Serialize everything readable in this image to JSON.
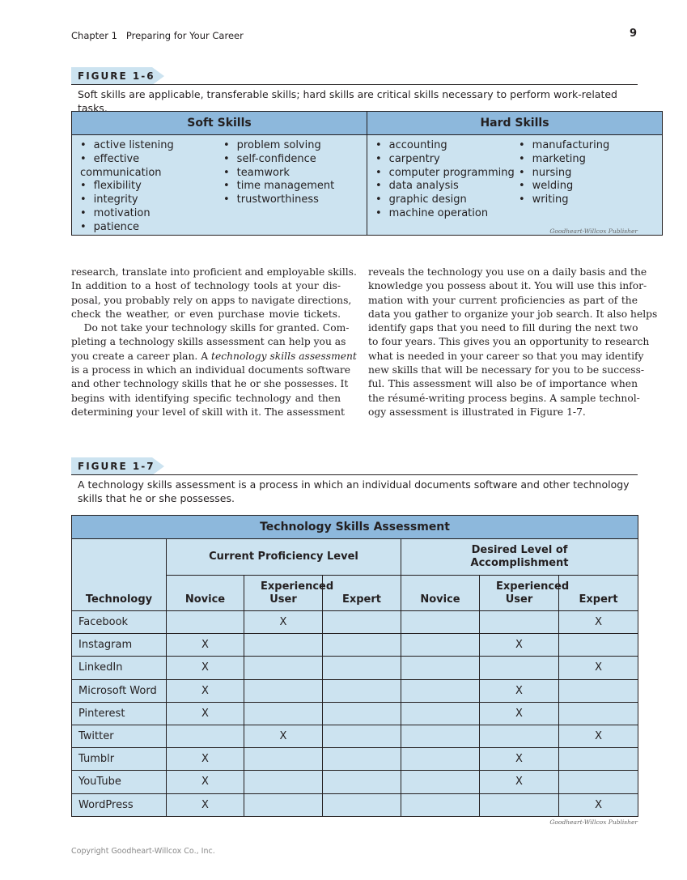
{
  "header": {
    "chapter": "Chapter 1   Preparing for Your Career",
    "page_number": "9"
  },
  "figure6": {
    "label": "FIGURE 1-6",
    "caption": "Soft skills are applicable, transferable skills; hard skills are critical skills necessary to perform work-related tasks.",
    "soft_title": "Soft Skills",
    "hard_title": "Hard Skills",
    "soft_col1": [
      "active listening",
      "effective communication",
      "flexibility",
      "integrity",
      "motivation",
      "patience"
    ],
    "soft_col2": [
      "problem solving",
      "self-confidence",
      "teamwork",
      "time management",
      "trustworthiness"
    ],
    "hard_col1": [
      "accounting",
      "carpentry",
      "computer programming",
      "data analysis",
      "graphic design",
      "machine operation"
    ],
    "hard_col2": [
      "manufacturing",
      "marketing",
      "nursing",
      "welding",
      "writing"
    ],
    "credit": "Goodheart-Willcox Publisher"
  },
  "body": {
    "left_lines": [
      "research, translate into proficient and employable skills.",
      "In addition to a host of technology tools at your dis-",
      "posal, you probably rely on apps to navigate directions,",
      "check the weather, or even purchase movie tickets.",
      "    Do not take your technology skills for granted. Com-",
      "pleting a technology skills assessment can help you as",
      "you create a career plan. A technology skills assessment",
      "is a process in which an individual documents software",
      "and other technology skills that he or she possesses. It",
      "begins with identifying specific technology and then",
      "determining your level of skill with it. The assessment"
    ],
    "right_lines": [
      "reveals the technology you use on a daily basis and the",
      "knowledge you possess about it. You will use this infor-",
      "mation with your current proficiencies as part of the",
      "data you gather to organize your job search. It also helps",
      "identify gaps that you need to fill during the next two",
      "to four years. This gives you an opportunity to research",
      "what is needed in your career so that you may identify",
      "new skills that will be necessary for you to be success-",
      "ful. This assessment will also be of importance when",
      "the résumé-writing process begins. A sample technol-",
      "ogy assessment is illustrated in Figure 1-7."
    ]
  },
  "figure7": {
    "label": "FIGURE 1-7",
    "caption": "A technology skills assessment is a process in which an individual documents software and other technology skills that he or she possesses.",
    "title": "Technology Skills Assessment",
    "group_current": "Current Proficiency Level",
    "group_desired": "Desired Level of Accomplishment",
    "columns": [
      "Technology",
      "Novice",
      "Experienced User",
      "Expert",
      "Novice",
      "Experienced User",
      "Expert"
    ],
    "rows": [
      [
        "Facebook",
        "",
        "X",
        "",
        "",
        "",
        "X"
      ],
      [
        "Instagram",
        "X",
        "",
        "",
        "",
        "X",
        ""
      ],
      [
        "LinkedIn",
        "X",
        "",
        "",
        "",
        "",
        "X"
      ],
      [
        "Microsoft Word",
        "X",
        "",
        "",
        "",
        "X",
        ""
      ],
      [
        "Pinterest",
        "X",
        "",
        "",
        "",
        "X",
        ""
      ],
      [
        "Twitter",
        "",
        "X",
        "",
        "",
        "",
        "X"
      ],
      [
        "Tumblr",
        "X",
        "",
        "",
        "",
        "X",
        ""
      ],
      [
        "YouTube",
        "X",
        "",
        "",
        "",
        "X",
        ""
      ],
      [
        "WordPress",
        "X",
        "",
        "",
        "",
        "",
        "X"
      ]
    ],
    "credit": "Goodheart-Willcox Publisher"
  },
  "footer": "Copyright Goodheart-Willcox Co., Inc.",
  "colors": {
    "header_blue": "#8db8dc",
    "cell_blue": "#cce3f0"
  }
}
